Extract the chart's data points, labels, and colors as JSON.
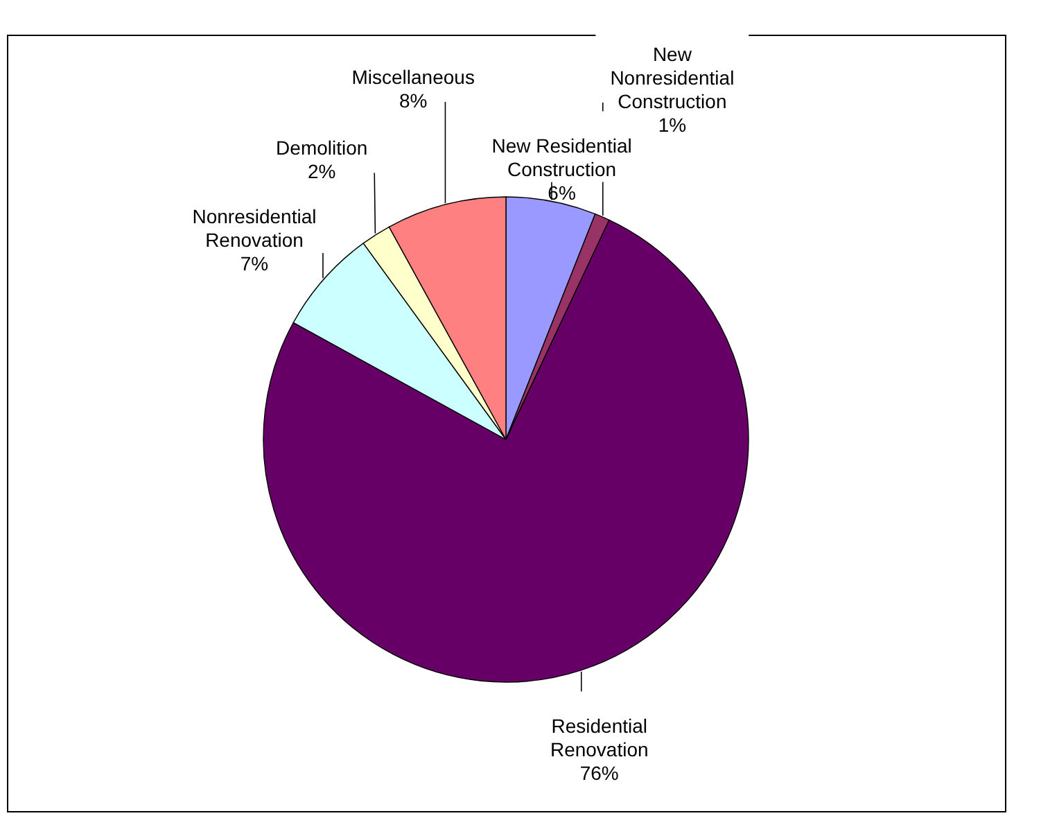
{
  "chart_data": {
    "type": "pie",
    "categories": [
      "New Residential Construction",
      "New Nonresidential Construction",
      "Residential Renovation",
      "Nonresidential Renovation",
      "Demolition",
      "Miscellaneous"
    ],
    "values": [
      6,
      1,
      76,
      7,
      2,
      8
    ],
    "value_labels": [
      "6%",
      "1%",
      "76%",
      "7%",
      "2%",
      "8%"
    ],
    "colors": [
      "#9999ff",
      "#993366",
      "#660066",
      "#ccffff",
      "#ffffcc",
      "#ff8080"
    ],
    "legend": false
  }
}
